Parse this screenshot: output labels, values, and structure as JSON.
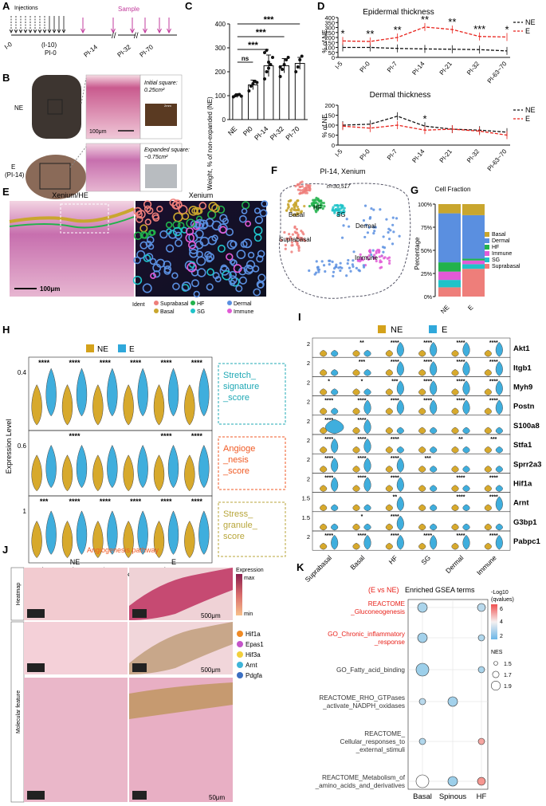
{
  "panel_letters": [
    "A",
    "B",
    "C",
    "D",
    "E",
    "F",
    "G",
    "H",
    "I",
    "J",
    "K"
  ],
  "colors": {
    "ne": "#D4A21B",
    "e": "#2FA8DB",
    "red": "#E8221B",
    "black": "#111111",
    "magenta": "#C23B9C",
    "suprabasal": "#EE7E7A",
    "basal": "#C9A62E",
    "hf": "#22B24C",
    "sg": "#1FC3C9",
    "dermal": "#5A8FE0",
    "immune": "#E25AD6",
    "stretch": "#1FA8B5",
    "angio": "#F05A24",
    "stress": "#B8A63B"
  },
  "panelA": {
    "injections": "Injections",
    "timepoints": [
      "I-0",
      "(I-10)",
      "PI-0",
      "PI-14",
      "PI-32",
      "PI-70"
    ],
    "sample": "Sample"
  },
  "panelB": {
    "ne_label": "NE",
    "e_label": "E",
    "e_sub": "(PI-14)",
    "scale": "100μm",
    "initial": "Initial square:",
    "initial_area": "0.25cm²",
    "expanded": "Expanded square:",
    "expanded_area": "~0.75cm²",
    "photo_scale": "2mm"
  },
  "chart_data": [
    {
      "id": "C",
      "type": "bar",
      "ylabel": "Weight, % of non-expanded (NE)",
      "categories": [
        "NE",
        "PI0",
        "PI-14",
        "PI-32",
        "PI-70"
      ],
      "values": [
        100,
        145,
        225,
        225,
        235
      ],
      "errors": [
        8,
        20,
        45,
        30,
        25
      ],
      "points": [
        [
          95,
          100,
          103,
          105,
          98
        ],
        [
          120,
          140,
          150,
          160,
          155
        ],
        [
          170,
          200,
          215,
          230,
          260,
          280,
          290,
          240
        ],
        [
          180,
          210,
          230,
          250,
          260,
          220
        ],
        [
          200,
          220,
          250,
          265
        ]
      ],
      "ylim": [
        0,
        400
      ],
      "yticks": [
        0,
        100,
        200,
        300,
        400
      ],
      "significance": [
        {
          "from": 0,
          "to": 1,
          "label": "ns"
        },
        {
          "from": 0,
          "to": 2,
          "label": "***"
        },
        {
          "from": 0,
          "to": 3,
          "label": "***"
        },
        {
          "from": 0,
          "to": 4,
          "label": "***"
        }
      ]
    },
    {
      "id": "D1",
      "type": "line",
      "title": "Epidermal thickness",
      "ylabel": "% of NE",
      "categories": [
        "I-5",
        "PI-0",
        "PI-7",
        "PI-14",
        "PI-21",
        "PI-32",
        "PI-63~70"
      ],
      "series": [
        {
          "name": "NE",
          "values": [
            100,
            100,
            90,
            85,
            82,
            78,
            65
          ]
        },
        {
          "name": "E",
          "values": [
            165,
            160,
            200,
            305,
            280,
            210,
            205
          ]
        }
      ],
      "stars": [
        "*",
        "**",
        "**",
        "**",
        "**",
        "***",
        "*"
      ],
      "ylim": [
        0,
        400
      ],
      "yticks": [
        0,
        50,
        100,
        150,
        200,
        250,
        300,
        350,
        400
      ]
    },
    {
      "id": "D2",
      "type": "line",
      "title": "Dermal thickness",
      "ylabel": "% of NE",
      "categories": [
        "I-5",
        "PI-0",
        "PI-7",
        "PI-14",
        "PI-21",
        "PI-32",
        "PI-63~70"
      ],
      "series": [
        {
          "name": "NE",
          "values": [
            100,
            105,
            145,
            95,
            80,
            75,
            65
          ]
        },
        {
          "name": "E",
          "values": [
            95,
            85,
            100,
            75,
            80,
            70,
            50
          ]
        }
      ],
      "stars": [
        "",
        "",
        "",
        "*",
        "",
        "",
        ""
      ],
      "ylim": [
        0,
        200
      ],
      "yticks": [
        0,
        50,
        100,
        150,
        200
      ]
    },
    {
      "id": "G",
      "type": "bar",
      "title": "Cell Fraction",
      "ylabel": "Percentage",
      "categories": [
        "NE",
        "E"
      ],
      "series": [
        {
          "name": "Suprabasal",
          "values": [
            10,
            30
          ]
        },
        {
          "name": "SG",
          "values": [
            8,
            5
          ]
        },
        {
          "name": "Immune",
          "values": [
            9,
            4
          ]
        },
        {
          "name": "HF",
          "values": [
            10,
            2
          ]
        },
        {
          "name": "Dermal",
          "values": [
            53,
            47
          ]
        },
        {
          "name": "Basal",
          "values": [
            10,
            12
          ]
        }
      ],
      "yticks": [
        "0%",
        "25%",
        "50%",
        "75%",
        "100%"
      ]
    }
  ],
  "panelE": {
    "left_title": "Xenium/HE",
    "right_title": "Xenium",
    "scale": "100μm",
    "ident_label": "Ident"
  },
  "legend_ident": [
    "Suprabasal",
    "HF",
    "Dermal",
    "Basal",
    "SG",
    "Immune"
  ],
  "panelF": {
    "title": "PI-14, Xenium",
    "n": "n=30,517",
    "clusters": [
      "Basal",
      "HF",
      "SG",
      "Dermal",
      "Suprabasal",
      "Immune"
    ]
  },
  "panelG_legend": [
    "Basal",
    "Dermal",
    "HF",
    "Immune",
    "SG",
    "Suprabasal"
  ],
  "panelH": {
    "ylabel": "Expression Level",
    "legend": [
      "NE",
      "E"
    ],
    "cell_types": [
      "Suprabasal",
      "Basal",
      "HF",
      "SG",
      "Dermal",
      "Immune"
    ],
    "scores": [
      {
        "label": [
          "Stretch_",
          "signature",
          "_score"
        ],
        "ytick": "0.4",
        "stars": [
          "****",
          "****",
          "****",
          "****",
          "****",
          "****"
        ]
      },
      {
        "label": [
          "Angioge",
          "_nesis",
          "_score"
        ],
        "ytick": "0.6",
        "stars": [
          "",
          "****",
          "",
          "",
          "****",
          "****"
        ]
      },
      {
        "label": [
          "Stress_",
          "granule_",
          "score"
        ],
        "ytick": "1",
        "stars": [
          "***",
          "****",
          "****",
          "****",
          "****",
          "****"
        ]
      }
    ]
  },
  "panelI": {
    "legend": [
      "NE",
      "E"
    ],
    "cell_types": [
      "Suprabasal",
      "Basal",
      "HF",
      "SG",
      "Dermal",
      "Immune"
    ],
    "genes": [
      {
        "name": "Akt1",
        "ytick": "2",
        "stars": [
          "",
          "**",
          "****",
          "****",
          "****",
          "****"
        ]
      },
      {
        "name": "Itgb1",
        "ytick": "2",
        "stars": [
          "",
          "***",
          "****",
          "****",
          "****",
          "****"
        ]
      },
      {
        "name": "Myh9",
        "ytick": "2",
        "stars": [
          "*",
          "*",
          "***",
          "****",
          "****",
          "****"
        ]
      },
      {
        "name": "Postn",
        "ytick": "2",
        "stars": [
          "****",
          "****",
          "****",
          "****",
          "****",
          "****"
        ]
      },
      {
        "name": "S100a8",
        "ytick": "2",
        "stars": [
          "****",
          "****",
          "",
          "",
          "",
          ""
        ]
      },
      {
        "name": "Stfa1",
        "ytick": "2",
        "stars": [
          "****",
          "****",
          "****",
          "",
          "**",
          "***"
        ]
      },
      {
        "name": "Sprr2a3",
        "ytick": "2",
        "stars": [
          "****",
          "****",
          "****",
          "***",
          "",
          ""
        ]
      },
      {
        "name": "Hif1a",
        "ytick": "2",
        "stars": [
          "****",
          "****",
          "****",
          "",
          "****",
          "****"
        ]
      },
      {
        "name": "Arnt",
        "ytick": "1.5",
        "stars": [
          "",
          "",
          "**",
          "",
          "****",
          "****"
        ]
      },
      {
        "name": "G3bp1",
        "ytick": "1.5",
        "stars": [
          "",
          "*",
          "****",
          "",
          "",
          ""
        ]
      },
      {
        "name": "Pabpc1",
        "ytick": "2",
        "stars": [
          "****",
          "****",
          "****",
          "****",
          "****",
          "****"
        ]
      }
    ]
  },
  "panelJ": {
    "title": "Angiogenesis pathway",
    "col_ne": "NE",
    "col_e": "E",
    "row_heatmap": "Heatmap",
    "row_molecular": "Molecular feature",
    "expression": "Expression",
    "max": "max",
    "min": "min",
    "scale1": "500μm",
    "scale2": "500μm",
    "scale3": "50μm",
    "genes": [
      "Hif1a",
      "Epas1",
      "Hif3a",
      "Arnt",
      "Pdgfa"
    ],
    "gene_colors": [
      "#F08A24",
      "#C455C9",
      "#F2CF3C",
      "#3FB4D8",
      "#3C6FC2"
    ]
  },
  "panelK": {
    "title_cmp": "(E vs NE)",
    "title": "Enriched GSEA terms",
    "terms": [
      [
        "REACTOME",
        "_Gluconeogenesis"
      ],
      [
        "GO_Chronic_inflammatory",
        "_response"
      ],
      [
        "GO_Fatty_acid_binding"
      ],
      [
        "REACTOME_RHO_GTPases",
        "_activate_NADPH_oxidases"
      ],
      [
        "REACTOME_",
        "Cellular_responses_to",
        "_external_stimuli"
      ],
      [
        "REACTOME_Metabolism_of",
        "_amino_acids_and_derivatives"
      ]
    ],
    "columns": [
      "Basal",
      "Spinous",
      "HF"
    ],
    "dots": [
      {
        "row": 0,
        "col": 0,
        "nes": 1.7,
        "logq": 2.2
      },
      {
        "row": 0,
        "col": 2,
        "nes": 1.6,
        "logq": 2.4
      },
      {
        "row": 1,
        "col": 0,
        "nes": 1.7,
        "logq": 2.1
      },
      {
        "row": 1,
        "col": 2,
        "nes": 1.5,
        "logq": 2.3
      },
      {
        "row": 2,
        "col": 0,
        "nes": 1.9,
        "logq": 2.0
      },
      {
        "row": 2,
        "col": 2,
        "nes": 1.5,
        "logq": 2.2
      },
      {
        "row": 3,
        "col": 0,
        "nes": 1.5,
        "logq": 2.4
      },
      {
        "row": 3,
        "col": 1,
        "nes": 1.7,
        "logq": 2.1
      },
      {
        "row": 4,
        "col": 0,
        "nes": 1.5,
        "logq": 2.3
      },
      {
        "row": 4,
        "col": 2,
        "nes": 1.5,
        "logq": 4.6
      },
      {
        "row": 5,
        "col": 0,
        "nes": 1.9,
        "logq": 0.9
      },
      {
        "row": 5,
        "col": 1,
        "nes": 1.7,
        "logq": 2.0
      },
      {
        "row": 5,
        "col": 2,
        "nes": 1.6,
        "logq": 4.9
      }
    ],
    "legend_q": [
      "-Log10",
      "(qvalues)"
    ],
    "q_ticks": [
      "6",
      "4",
      "2"
    ],
    "legend_nes": "NES",
    "nes_ticks": [
      "1.5",
      "1.7",
      "1.9"
    ]
  }
}
